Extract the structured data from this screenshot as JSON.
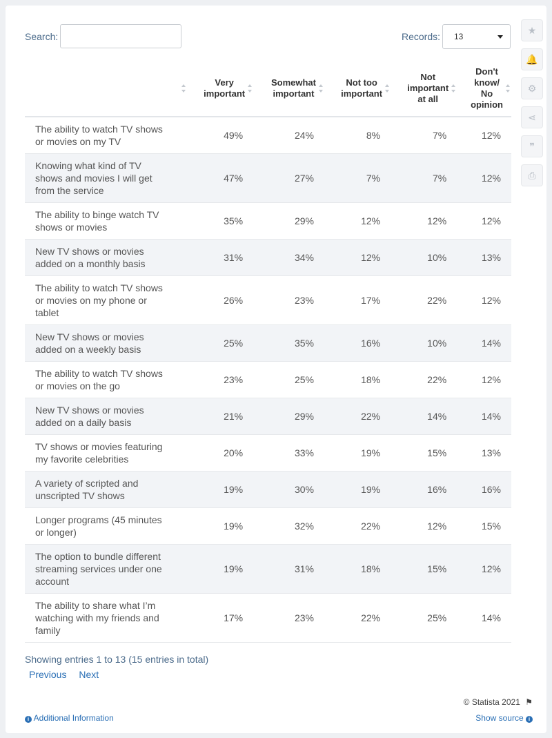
{
  "search": {
    "label": "Search:",
    "value": ""
  },
  "records": {
    "label": "Records:",
    "selected": "13"
  },
  "tools": [
    {
      "icon": "star-icon",
      "glyph": "★"
    },
    {
      "icon": "bell-icon",
      "glyph": "🔔"
    },
    {
      "icon": "gear-icon",
      "glyph": "⚙"
    },
    {
      "icon": "share-icon",
      "glyph": "⋖"
    },
    {
      "icon": "quote-icon",
      "glyph": "❞"
    },
    {
      "icon": "print-icon",
      "glyph": "⎙"
    }
  ],
  "table": {
    "headers": [
      {
        "lines": [
          ""
        ]
      },
      {
        "lines": [
          "Very",
          "important"
        ]
      },
      {
        "lines": [
          "Somewhat",
          "important"
        ]
      },
      {
        "lines": [
          "Not too",
          "important"
        ]
      },
      {
        "lines": [
          "Not",
          "important",
          "at all"
        ]
      },
      {
        "lines": [
          "Don't",
          "know/",
          "No",
          "opinion"
        ]
      }
    ],
    "rows": [
      {
        "label": [
          "The ability to watch TV shows",
          "or movies on my TV"
        ],
        "values": [
          "49%",
          "24%",
          "8%",
          "7%",
          "12%"
        ]
      },
      {
        "label": [
          "Knowing what kind of TV",
          "shows and movies I will get",
          "from the service"
        ],
        "values": [
          "47%",
          "27%",
          "7%",
          "7%",
          "12%"
        ]
      },
      {
        "label": [
          "The ability to binge watch TV",
          "shows or movies"
        ],
        "values": [
          "35%",
          "29%",
          "12%",
          "12%",
          "12%"
        ]
      },
      {
        "label": [
          "New TV shows or movies",
          "added on a monthly basis"
        ],
        "values": [
          "31%",
          "34%",
          "12%",
          "10%",
          "13%"
        ]
      },
      {
        "label": [
          "The ability to watch TV shows",
          "or movies on my phone or",
          "tablet"
        ],
        "values": [
          "26%",
          "23%",
          "17%",
          "22%",
          "12%"
        ]
      },
      {
        "label": [
          "New TV shows or movies",
          "added on a weekly basis"
        ],
        "values": [
          "25%",
          "35%",
          "16%",
          "10%",
          "14%"
        ]
      },
      {
        "label": [
          "The ability to watch TV shows",
          "or movies on the go"
        ],
        "values": [
          "23%",
          "25%",
          "18%",
          "22%",
          "12%"
        ]
      },
      {
        "label": [
          "New TV shows or movies",
          "added on a daily basis"
        ],
        "values": [
          "21%",
          "29%",
          "22%",
          "14%",
          "14%"
        ]
      },
      {
        "label": [
          "TV shows or movies featuring",
          "my favorite celebrities"
        ],
        "values": [
          "20%",
          "33%",
          "19%",
          "15%",
          "13%"
        ]
      },
      {
        "label": [
          "A variety of scripted and",
          "unscripted TV shows"
        ],
        "values": [
          "19%",
          "30%",
          "19%",
          "16%",
          "16%"
        ]
      },
      {
        "label": [
          "Longer programs (45 minutes",
          "or longer)"
        ],
        "values": [
          "19%",
          "32%",
          "22%",
          "12%",
          "15%"
        ]
      },
      {
        "label": [
          "The option to bundle different",
          "streaming services under one",
          "account"
        ],
        "values": [
          "19%",
          "31%",
          "18%",
          "15%",
          "12%"
        ]
      },
      {
        "label": [
          "The ability to share what I’m",
          "watching with my friends and",
          "family"
        ],
        "values": [
          "17%",
          "23%",
          "22%",
          "25%",
          "14%"
        ]
      }
    ]
  },
  "footer": {
    "showing": "Showing entries 1 to 13 (15 entries in total)",
    "previous": "Previous",
    "next": "Next",
    "copyright": "© Statista 2021",
    "additional_info": "Additional Information",
    "show_source": "Show source"
  }
}
